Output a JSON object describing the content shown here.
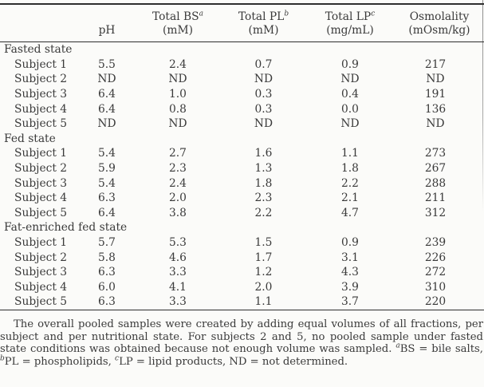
{
  "table": {
    "columns": [
      {
        "label": "",
        "sup": "",
        "unit": ""
      },
      {
        "label": "pH",
        "sup": "",
        "unit": ""
      },
      {
        "label": "Total BS",
        "sup": "a",
        "unit": "(mM)"
      },
      {
        "label": "Total PL",
        "sup": "b",
        "unit": "(mM)"
      },
      {
        "label": "Total LP",
        "sup": "c",
        "unit": "(mg/mL)"
      },
      {
        "label": "Osmolality",
        "sup": "",
        "unit": "(mOsm/kg)"
      }
    ],
    "sections": [
      {
        "name": "Fasted state",
        "rows": [
          {
            "label": "Subject 1",
            "values": [
              "5.5",
              "2.4",
              "0.7",
              "0.9",
              "217"
            ]
          },
          {
            "label": "Subject 2",
            "values": [
              "ND",
              "ND",
              "ND",
              "ND",
              "ND"
            ]
          },
          {
            "label": "Subject 3",
            "values": [
              "6.4",
              "1.0",
              "0.3",
              "0.4",
              "191"
            ]
          },
          {
            "label": "Subject 4",
            "values": [
              "6.4",
              "0.8",
              "0.3",
              "0.0",
              "136"
            ]
          },
          {
            "label": "Subject 5",
            "values": [
              "ND",
              "ND",
              "ND",
              "ND",
              "ND"
            ]
          }
        ]
      },
      {
        "name": "Fed state",
        "rows": [
          {
            "label": "Subject 1",
            "values": [
              "5.4",
              "2.7",
              "1.6",
              "1.1",
              "273"
            ]
          },
          {
            "label": "Subject 2",
            "values": [
              "5.9",
              "2.3",
              "1.3",
              "1.8",
              "267"
            ]
          },
          {
            "label": "Subject 3",
            "values": [
              "5.4",
              "2.4",
              "1.8",
              "2.2",
              "288"
            ]
          },
          {
            "label": "Subject 4",
            "values": [
              "6.3",
              "2.0",
              "2.3",
              "2.1",
              "211"
            ]
          },
          {
            "label": "Subject 5",
            "values": [
              "6.4",
              "3.8",
              "2.2",
              "4.7",
              "312"
            ]
          }
        ]
      },
      {
        "name": "Fat-enriched fed state",
        "rows": [
          {
            "label": "Subject 1",
            "values": [
              "5.7",
              "5.3",
              "1.5",
              "0.9",
              "239"
            ]
          },
          {
            "label": "Subject 2",
            "values": [
              "5.8",
              "4.6",
              "1.7",
              "3.1",
              "226"
            ]
          },
          {
            "label": "Subject 3",
            "values": [
              "6.3",
              "3.3",
              "1.2",
              "4.3",
              "272"
            ]
          },
          {
            "label": "Subject 4",
            "values": [
              "6.0",
              "4.1",
              "2.0",
              "3.9",
              "310"
            ]
          },
          {
            "label": "Subject 5",
            "values": [
              "6.3",
              "3.3",
              "1.1",
              "3.7",
              "220"
            ]
          }
        ]
      }
    ]
  },
  "footnote": {
    "segments": [
      {
        "text": "The overall pooled samples were created by adding equal volumes of all fractions, per subject and per nutritional state. For subjects 2 and 5, no pooled sample under fasted state conditions was obtained because not enough volume was sampled. "
      },
      {
        "sup": "a"
      },
      {
        "text": "BS = bile salts, "
      },
      {
        "sup": "b"
      },
      {
        "text": "PL = phospholipids, "
      },
      {
        "sup": "c"
      },
      {
        "text": "LP = lipid products, ND = not determined."
      }
    ]
  },
  "colors": {
    "text": "#3a3a3a",
    "rule": "#2e2e2e",
    "background": "#fbfbf9"
  }
}
